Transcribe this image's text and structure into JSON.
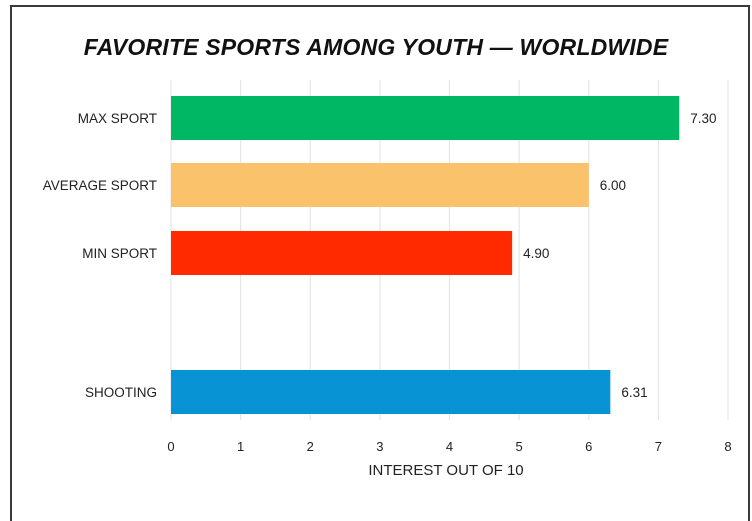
{
  "chart_data": {
    "type": "bar",
    "orientation": "horizontal",
    "title": "FAVORITE SPORTS AMONG YOUTH — WORLDWIDE",
    "xlabel": "INTEREST OUT OF 10",
    "ylabel": "",
    "xlim": [
      0,
      8
    ],
    "x_ticks": [
      "0",
      "1",
      "2",
      "3",
      "4",
      "5",
      "6",
      "7",
      "8"
    ],
    "grid": "vertical",
    "categories": [
      "MAX SPORT",
      "AVERAGE SPORT",
      "MIN SPORT",
      "",
      "SHOOTING"
    ],
    "values": [
      7.3,
      6.0,
      4.9,
      null,
      6.31
    ],
    "value_labels": [
      "7.30",
      "6.00",
      "4.90",
      "",
      "6.31"
    ],
    "colors": [
      "#00b863",
      "#fbc26c",
      "#ff2a00",
      "",
      "#0894d4"
    ]
  }
}
